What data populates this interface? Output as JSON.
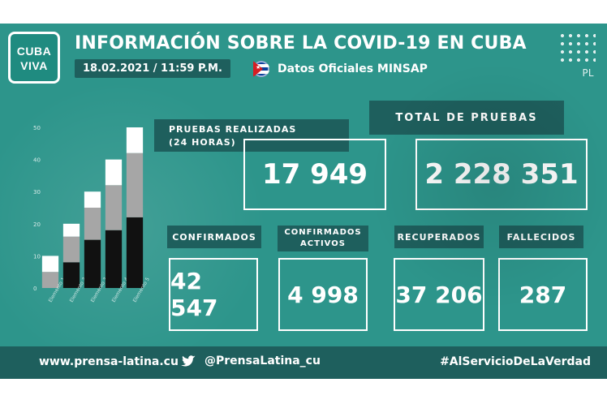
{
  "brand": {
    "logo_line1": "CUBA",
    "logo_line2": "VIVA"
  },
  "header": {
    "title": "INFORMACIÓN SOBRE LA COVID-19 EN CUBA",
    "datetime": "18.02.2021 / 11:59 P.M.",
    "source_label": "Datos Oficiales MINSAP",
    "pl_mark": "PL"
  },
  "stats": {
    "pruebas_24h_label_1": "PRUEBAS REALIZADAS",
    "pruebas_24h_label_2": "(24 HORAS)",
    "pruebas_24h_value": "17 949",
    "total_pruebas_label": "TOTAL DE PRUEBAS",
    "total_pruebas_value": "2 228 351",
    "confirmados_label": "CONFIRMADOS",
    "confirmados_value": "42 547",
    "activos_label_1": "CONFIRMADOS",
    "activos_label_2": "ACTIVOS",
    "activos_value": "4 998",
    "recuperados_label": "RECUPERADOS",
    "recuperados_value": "37 206",
    "fallecidos_label": "FALLECIDOS",
    "fallecidos_value": "287"
  },
  "footer": {
    "website": "www.prensa-latina.cu",
    "twitter": "@PrensaLatina_cu",
    "hashtag": "#AlServicioDeLaVerdad"
  },
  "chart_data": {
    "type": "bar",
    "stacked": true,
    "categories": [
      "Elemento 1",
      "Elemento 2",
      "Elemento 3",
      "Elemento 4",
      "Elemento 5"
    ],
    "series": [
      {
        "values": [
          0,
          8,
          15,
          18,
          22
        ],
        "color": "#111111"
      },
      {
        "values": [
          5,
          8,
          10,
          14,
          20
        ],
        "color": "#a6a6a6"
      },
      {
        "values": [
          5,
          4,
          5,
          8,
          8
        ],
        "color": "#ffffff"
      }
    ],
    "ylim": [
      0,
      50
    ],
    "yticks": [
      "0",
      "10",
      "20",
      "30",
      "40",
      "50"
    ],
    "grid": false
  }
}
